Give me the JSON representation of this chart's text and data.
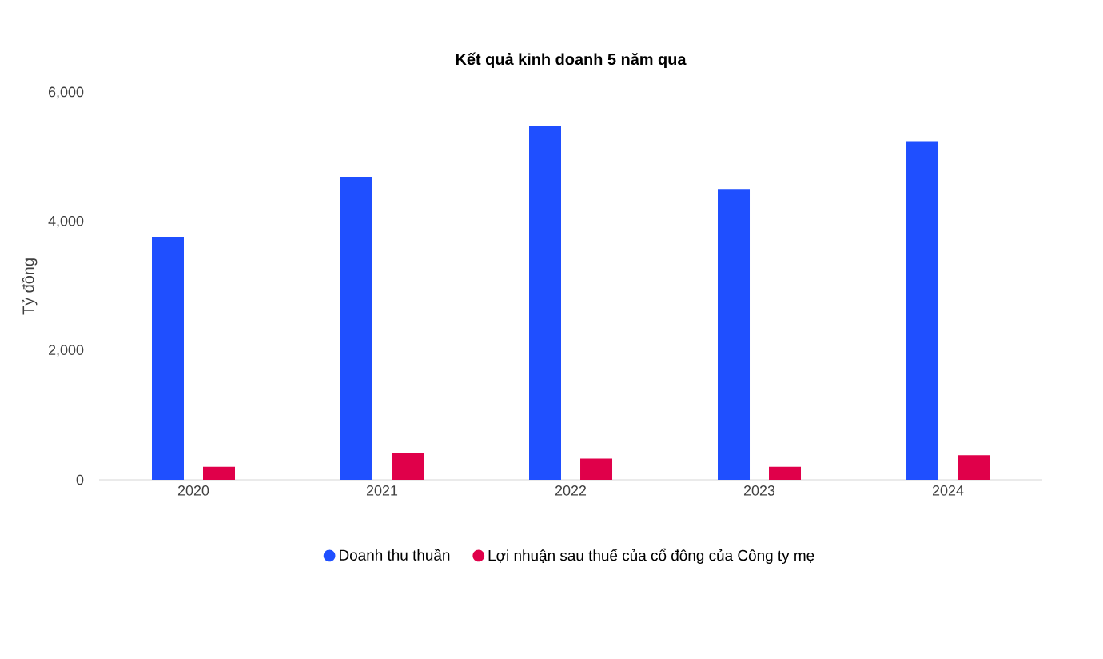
{
  "chart_data": {
    "type": "bar",
    "title": "Kết quả kinh doanh 5 năm qua",
    "ylabel": "Tỷ đồng",
    "categories": [
      "2020",
      "2021",
      "2022",
      "2023",
      "2024"
    ],
    "series": [
      {
        "name": "Doanh thu thuần",
        "color": "#1f4fff",
        "values": [
          3770,
          4700,
          5480,
          4510,
          5250
        ]
      },
      {
        "name": "Lợi nhuận sau thuế của cổ đông của Công ty mẹ",
        "color": "#e0004a",
        "values": [
          200,
          410,
          330,
          200,
          380
        ]
      }
    ],
    "ylim": [
      0,
      6000
    ],
    "yticks": [
      {
        "value": 0,
        "label": "0"
      },
      {
        "value": 2000,
        "label": "2,000"
      },
      {
        "value": 4000,
        "label": "4,000"
      },
      {
        "value": 6000,
        "label": "6,000"
      }
    ],
    "legend": "bottom"
  }
}
